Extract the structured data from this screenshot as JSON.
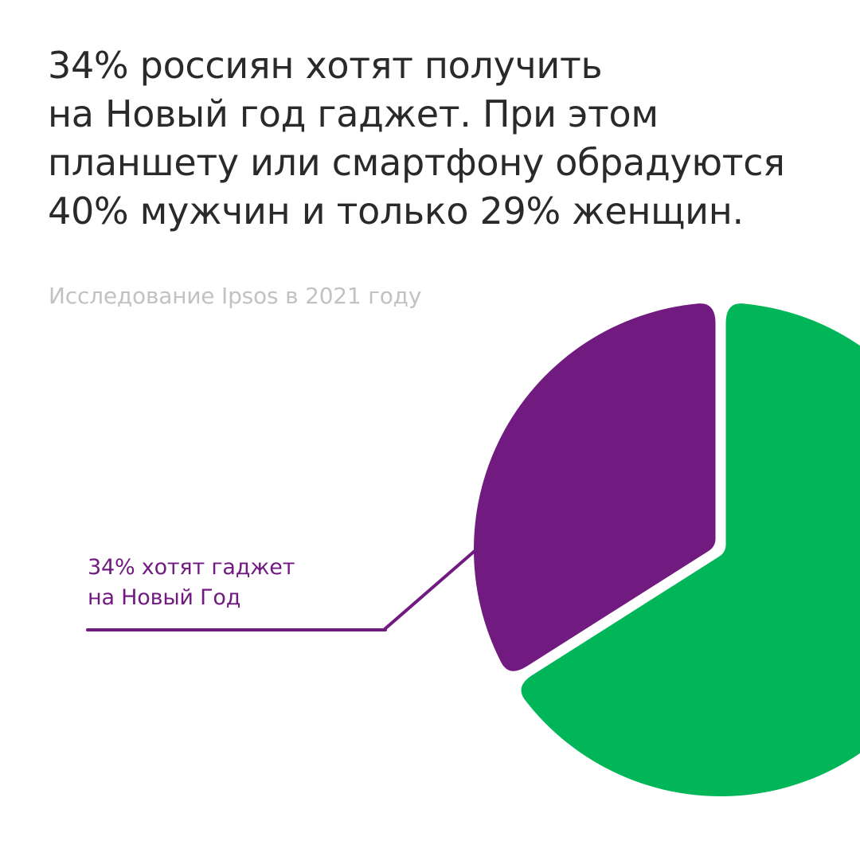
{
  "headline": {
    "lines": [
      "34% россиян хотят получить",
      "на Новый год гаджет. При этом",
      "планшету или смартфону обрадуются",
      "40% мужчин и только 29% женщин."
    ]
  },
  "source": "Исследование Ipsos в 2021 году",
  "colors": {
    "gadget": "#711a80",
    "rest": "#00b658",
    "headline": "#2a2a2a",
    "source": "#c2c2c2"
  },
  "chart_data": {
    "type": "pie",
    "slices": [
      {
        "label": "34% хотят гаджет на Новый Год",
        "value": 34,
        "color": "#711a80"
      },
      {
        "label": "",
        "value": 66,
        "color": "#00b658"
      }
    ],
    "annotation": {
      "lines": [
        "34% хотят гаджет",
        "на Новый Год"
      ]
    }
  }
}
